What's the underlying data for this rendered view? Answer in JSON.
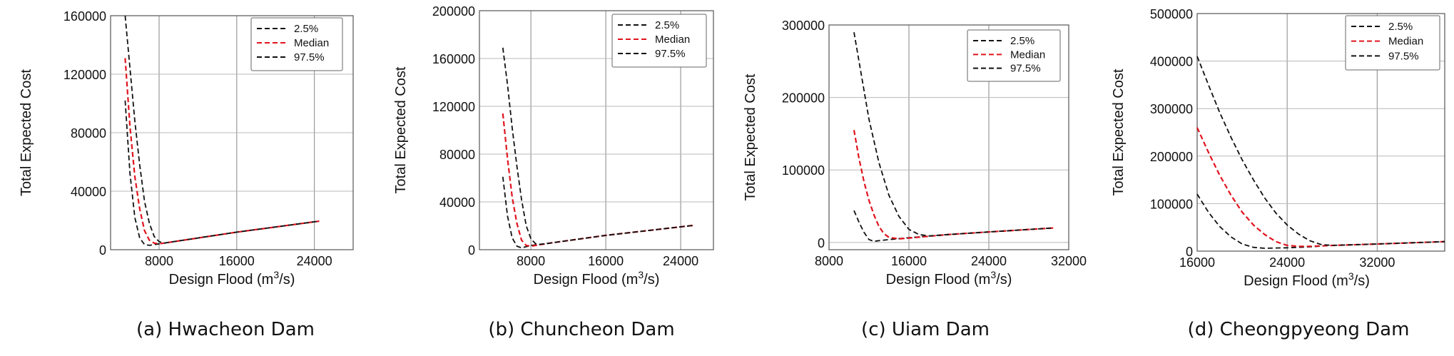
{
  "chart_data": [
    {
      "type": "line",
      "caption": "(a) Hwacheon Dam",
      "xlabel_main": "Design Flood (m",
      "xlabel_sup": "3",
      "xlabel_tail": "/s)",
      "ylabel": "Total Expected Cost",
      "xlim": [
        3000,
        28000
      ],
      "ylim": [
        0,
        160000
      ],
      "xticks": [
        8000,
        16000,
        24000
      ],
      "yticks": [
        0,
        40000,
        80000,
        120000,
        160000
      ],
      "xtick_labels": [
        "8000",
        "16000",
        "24000"
      ],
      "ytick_labels": [
        "0",
        "40000",
        "80000",
        "120000",
        "160000"
      ],
      "legend": [
        "2.5%",
        "Median",
        "97.5%"
      ],
      "series": [
        {
          "name": "2.5%",
          "color": "#111111",
          "x": [
            4500,
            5000,
            5500,
            6000,
            6500,
            7000,
            7500,
            8000,
            10000,
            16000,
            24500
          ],
          "y": [
            102000,
            52000,
            22000,
            8000,
            3500,
            3000,
            3500,
            4000,
            6000,
            12000,
            19500
          ]
        },
        {
          "name": "Median",
          "color": "#e0141e",
          "x": [
            4500,
            5000,
            5500,
            6000,
            6500,
            7000,
            7500,
            8000,
            10000,
            16000,
            24500
          ],
          "y": [
            131000,
            84000,
            50000,
            28000,
            13000,
            6500,
            4500,
            4000,
            6000,
            12000,
            19500
          ]
        },
        {
          "name": "97.5%",
          "color": "#111111",
          "x": [
            4500,
            5000,
            5500,
            6000,
            6500,
            7000,
            7500,
            8000,
            8500,
            10000,
            16000,
            24500
          ],
          "y": [
            160000,
            124000,
            88000,
            58000,
            33000,
            18000,
            9000,
            5500,
            4500,
            6000,
            12000,
            19500
          ]
        }
      ]
    },
    {
      "type": "line",
      "caption": "(b) Chuncheon Dam",
      "xlabel_main": "Design Flood (m",
      "xlabel_sup": "3",
      "xlabel_tail": "/s)",
      "ylabel": "Total Expected Cost",
      "xlim": [
        2500,
        27500
      ],
      "ylim": [
        0,
        200000
      ],
      "xticks": [
        8000,
        16000,
        24000
      ],
      "yticks": [
        0,
        40000,
        80000,
        120000,
        160000,
        200000
      ],
      "xtick_labels": [
        "8000",
        "16000",
        "24000"
      ],
      "ytick_labels": [
        "0",
        "40000",
        "80000",
        "120000",
        "160000",
        "200000"
      ],
      "legend": [
        "2.5%",
        "Median",
        "97.5%"
      ],
      "series": [
        {
          "name": "2.5%",
          "color": "#111111",
          "x": [
            5000,
            5500,
            6000,
            6500,
            7000,
            7500,
            8000,
            10000,
            16000,
            25500
          ],
          "y": [
            61000,
            28000,
            10000,
            3000,
            1500,
            2500,
            3500,
            5500,
            12000,
            20500
          ]
        },
        {
          "name": "Median",
          "color": "#e0141e",
          "x": [
            5000,
            5500,
            6000,
            6500,
            7000,
            7500,
            8000,
            8500,
            10000,
            16000,
            25500
          ],
          "y": [
            114000,
            76000,
            44000,
            22000,
            8000,
            3500,
            3000,
            3500,
            5500,
            12000,
            20500
          ]
        },
        {
          "name": "97.5%",
          "color": "#111111",
          "x": [
            5000,
            5500,
            6000,
            6500,
            7000,
            7500,
            8000,
            8500,
            9000,
            10000,
            16000,
            25500
          ],
          "y": [
            169000,
            138000,
            102000,
            70000,
            42000,
            20000,
            9000,
            5000,
            4500,
            5500,
            12000,
            20500
          ]
        }
      ]
    },
    {
      "type": "line",
      "caption": "(c) Uiam Dam",
      "xlabel_main": "Design Flood (m",
      "xlabel_sup": "3",
      "xlabel_tail": "/s)",
      "ylabel": "Total Expected Cost",
      "xlim": [
        8000,
        32000
      ],
      "ylim": [
        -10000,
        300000
      ],
      "xticks": [
        8000,
        16000,
        24000,
        32000
      ],
      "yticks": [
        0,
        100000,
        200000,
        300000
      ],
      "xtick_labels": [
        "8000",
        "16000",
        "24000",
        "32000"
      ],
      "ytick_labels": [
        "0",
        "100000",
        "200000",
        "300000"
      ],
      "legend": [
        "2.5%",
        "Median",
        "97.5%"
      ],
      "series": [
        {
          "name": "2.5%",
          "color": "#111111",
          "x": [
            10500,
            11000,
            11500,
            12000,
            12500,
            13000,
            14000,
            16000,
            20000,
            24000,
            30500
          ],
          "y": [
            44000,
            28000,
            14000,
            4000,
            1500,
            2500,
            4000,
            6500,
            11000,
            14500,
            20000
          ]
        },
        {
          "name": "Median",
          "color": "#e0141e",
          "x": [
            10500,
            11000,
            11500,
            12000,
            12500,
            13000,
            13500,
            14000,
            15000,
            16000,
            20000,
            24000,
            30500
          ],
          "y": [
            155000,
            116000,
            84000,
            58000,
            38000,
            22000,
            12000,
            7000,
            5000,
            6000,
            11000,
            14500,
            20000
          ]
        },
        {
          "name": "97.5%",
          "color": "#111111",
          "x": [
            10500,
            11000,
            11500,
            12000,
            13000,
            14000,
            15000,
            16000,
            17000,
            18000,
            20000,
            24000,
            30500
          ],
          "y": [
            290000,
            250000,
            210000,
            170000,
            110000,
            65000,
            36000,
            18000,
            11000,
            9000,
            11000,
            14500,
            20000
          ]
        }
      ]
    },
    {
      "type": "line",
      "caption": "(d) Cheongpyeong Dam",
      "xlabel_main": "Design Flood (m",
      "xlabel_sup": "3",
      "xlabel_tail": "/s)",
      "ylabel": "Total Expected Cost",
      "xlim": [
        16000,
        38000
      ],
      "ylim": [
        0,
        500000
      ],
      "xticks": [
        16000,
        24000,
        32000
      ],
      "yticks": [
        0,
        100000,
        200000,
        300000,
        400000,
        500000
      ],
      "xtick_labels": [
        "16000",
        "24000",
        "32000"
      ],
      "ytick_labels": [
        "0",
        "100000",
        "200000",
        "300000",
        "400000",
        "500000"
      ],
      "legend": [
        "2.5%",
        "Median",
        "97.5%"
      ],
      "series": [
        {
          "name": "2.5%",
          "color": "#111111",
          "x": [
            16000,
            17000,
            18000,
            19000,
            20000,
            21000,
            22000,
            24000,
            26000,
            28000,
            32000,
            38000
          ],
          "y": [
            120000,
            82000,
            52000,
            30000,
            15000,
            8000,
            6000,
            7000,
            9000,
            12000,
            15000,
            20000
          ]
        },
        {
          "name": "Median",
          "color": "#e0141e",
          "x": [
            16000,
            17000,
            18000,
            19000,
            20000,
            21000,
            22000,
            23000,
            24000,
            25000,
            26000,
            28000,
            32000,
            38000
          ],
          "y": [
            260000,
            208000,
            160000,
            118000,
            82000,
            55000,
            35000,
            20000,
            12000,
            10000,
            10000,
            12000,
            15000,
            20000
          ]
        },
        {
          "name": "97.5%",
          "color": "#111111",
          "x": [
            16000,
            17000,
            18000,
            19000,
            20000,
            21000,
            22000,
            23000,
            24000,
            25000,
            26000,
            27000,
            28000,
            32000,
            38000
          ],
          "y": [
            410000,
            350000,
            292000,
            240000,
            192000,
            150000,
            112000,
            80000,
            55000,
            36000,
            22000,
            14000,
            12000,
            15000,
            20000
          ]
        }
      ]
    }
  ]
}
